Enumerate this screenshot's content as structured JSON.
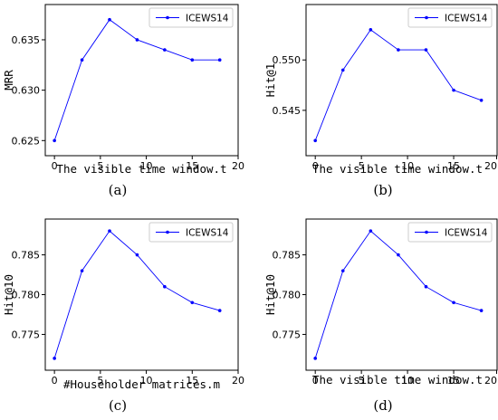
{
  "chart_data": [
    {
      "type": "line",
      "panel_label": "(a)",
      "xlabel": "The visible time window.t",
      "ylabel": "MRR",
      "xlim": [
        -1,
        20
      ],
      "ylim": [
        0.6235,
        0.6385
      ],
      "xticks": [
        0,
        5,
        10,
        15,
        20
      ],
      "yticks": [
        0.625,
        0.63,
        0.635
      ],
      "ytick_labels": [
        "0.625",
        "0.630",
        "0.635"
      ],
      "legend_position": "top-right",
      "grid": false,
      "series": [
        {
          "name": "ICEWS14",
          "color": "#0000ff",
          "x": [
            0,
            3,
            6,
            9,
            12,
            15,
            18
          ],
          "y": [
            0.625,
            0.633,
            0.637,
            0.635,
            0.634,
            0.633,
            0.633
          ]
        }
      ]
    },
    {
      "type": "line",
      "panel_label": "(b)",
      "xlabel": "The visible time window.t",
      "ylabel": "Hit@1",
      "xlim": [
        -1,
        20
      ],
      "ylim": [
        0.5405,
        0.5555
      ],
      "xticks": [
        0,
        5,
        10,
        15,
        20
      ],
      "yticks": [
        0.545,
        0.55
      ],
      "ytick_labels": [
        "0.545",
        "0.550"
      ],
      "legend_position": "top-right",
      "grid": false,
      "series": [
        {
          "name": "ICEWS14",
          "color": "#0000ff",
          "x": [
            0,
            3,
            6,
            9,
            12,
            15,
            18
          ],
          "y": [
            0.542,
            0.549,
            0.553,
            0.551,
            0.551,
            0.547,
            0.546
          ]
        }
      ]
    },
    {
      "type": "line",
      "panel_label": "(c)",
      "xlabel": "#Householder matrices.m",
      "ylabel": "Hit@10",
      "xlim": [
        -1,
        20
      ],
      "ylim": [
        0.7705,
        0.7895
      ],
      "xticks": [
        0,
        5,
        10,
        15,
        20
      ],
      "yticks": [
        0.775,
        0.78,
        0.785
      ],
      "ytick_labels": [
        "0.775",
        "0.780",
        "0.785"
      ],
      "legend_position": "top-right",
      "grid": false,
      "series": [
        {
          "name": "ICEWS14",
          "color": "#0000ff",
          "x": [
            0,
            3,
            6,
            9,
            12,
            15,
            18
          ],
          "y": [
            0.772,
            0.783,
            0.788,
            0.785,
            0.781,
            0.779,
            0.778
          ]
        }
      ]
    },
    {
      "type": "line",
      "panel_label": "(d)",
      "xlabel": "The visible time window.t",
      "ylabel": "Hit@10",
      "xlim": [
        -1,
        20
      ],
      "ylim": [
        0.7705,
        0.7895
      ],
      "xticks": [
        0,
        5,
        10,
        15,
        20
      ],
      "yticks": [
        0.775,
        0.78,
        0.785
      ],
      "ytick_labels": [
        "0.775",
        "0.780",
        "0.785"
      ],
      "legend_position": "top-right",
      "grid": false,
      "series": [
        {
          "name": "ICEWS14",
          "color": "#0000ff",
          "x": [
            0,
            3,
            6,
            9,
            12,
            15,
            18
          ],
          "y": [
            0.772,
            0.783,
            0.788,
            0.785,
            0.781,
            0.779,
            0.778
          ]
        }
      ]
    }
  ]
}
